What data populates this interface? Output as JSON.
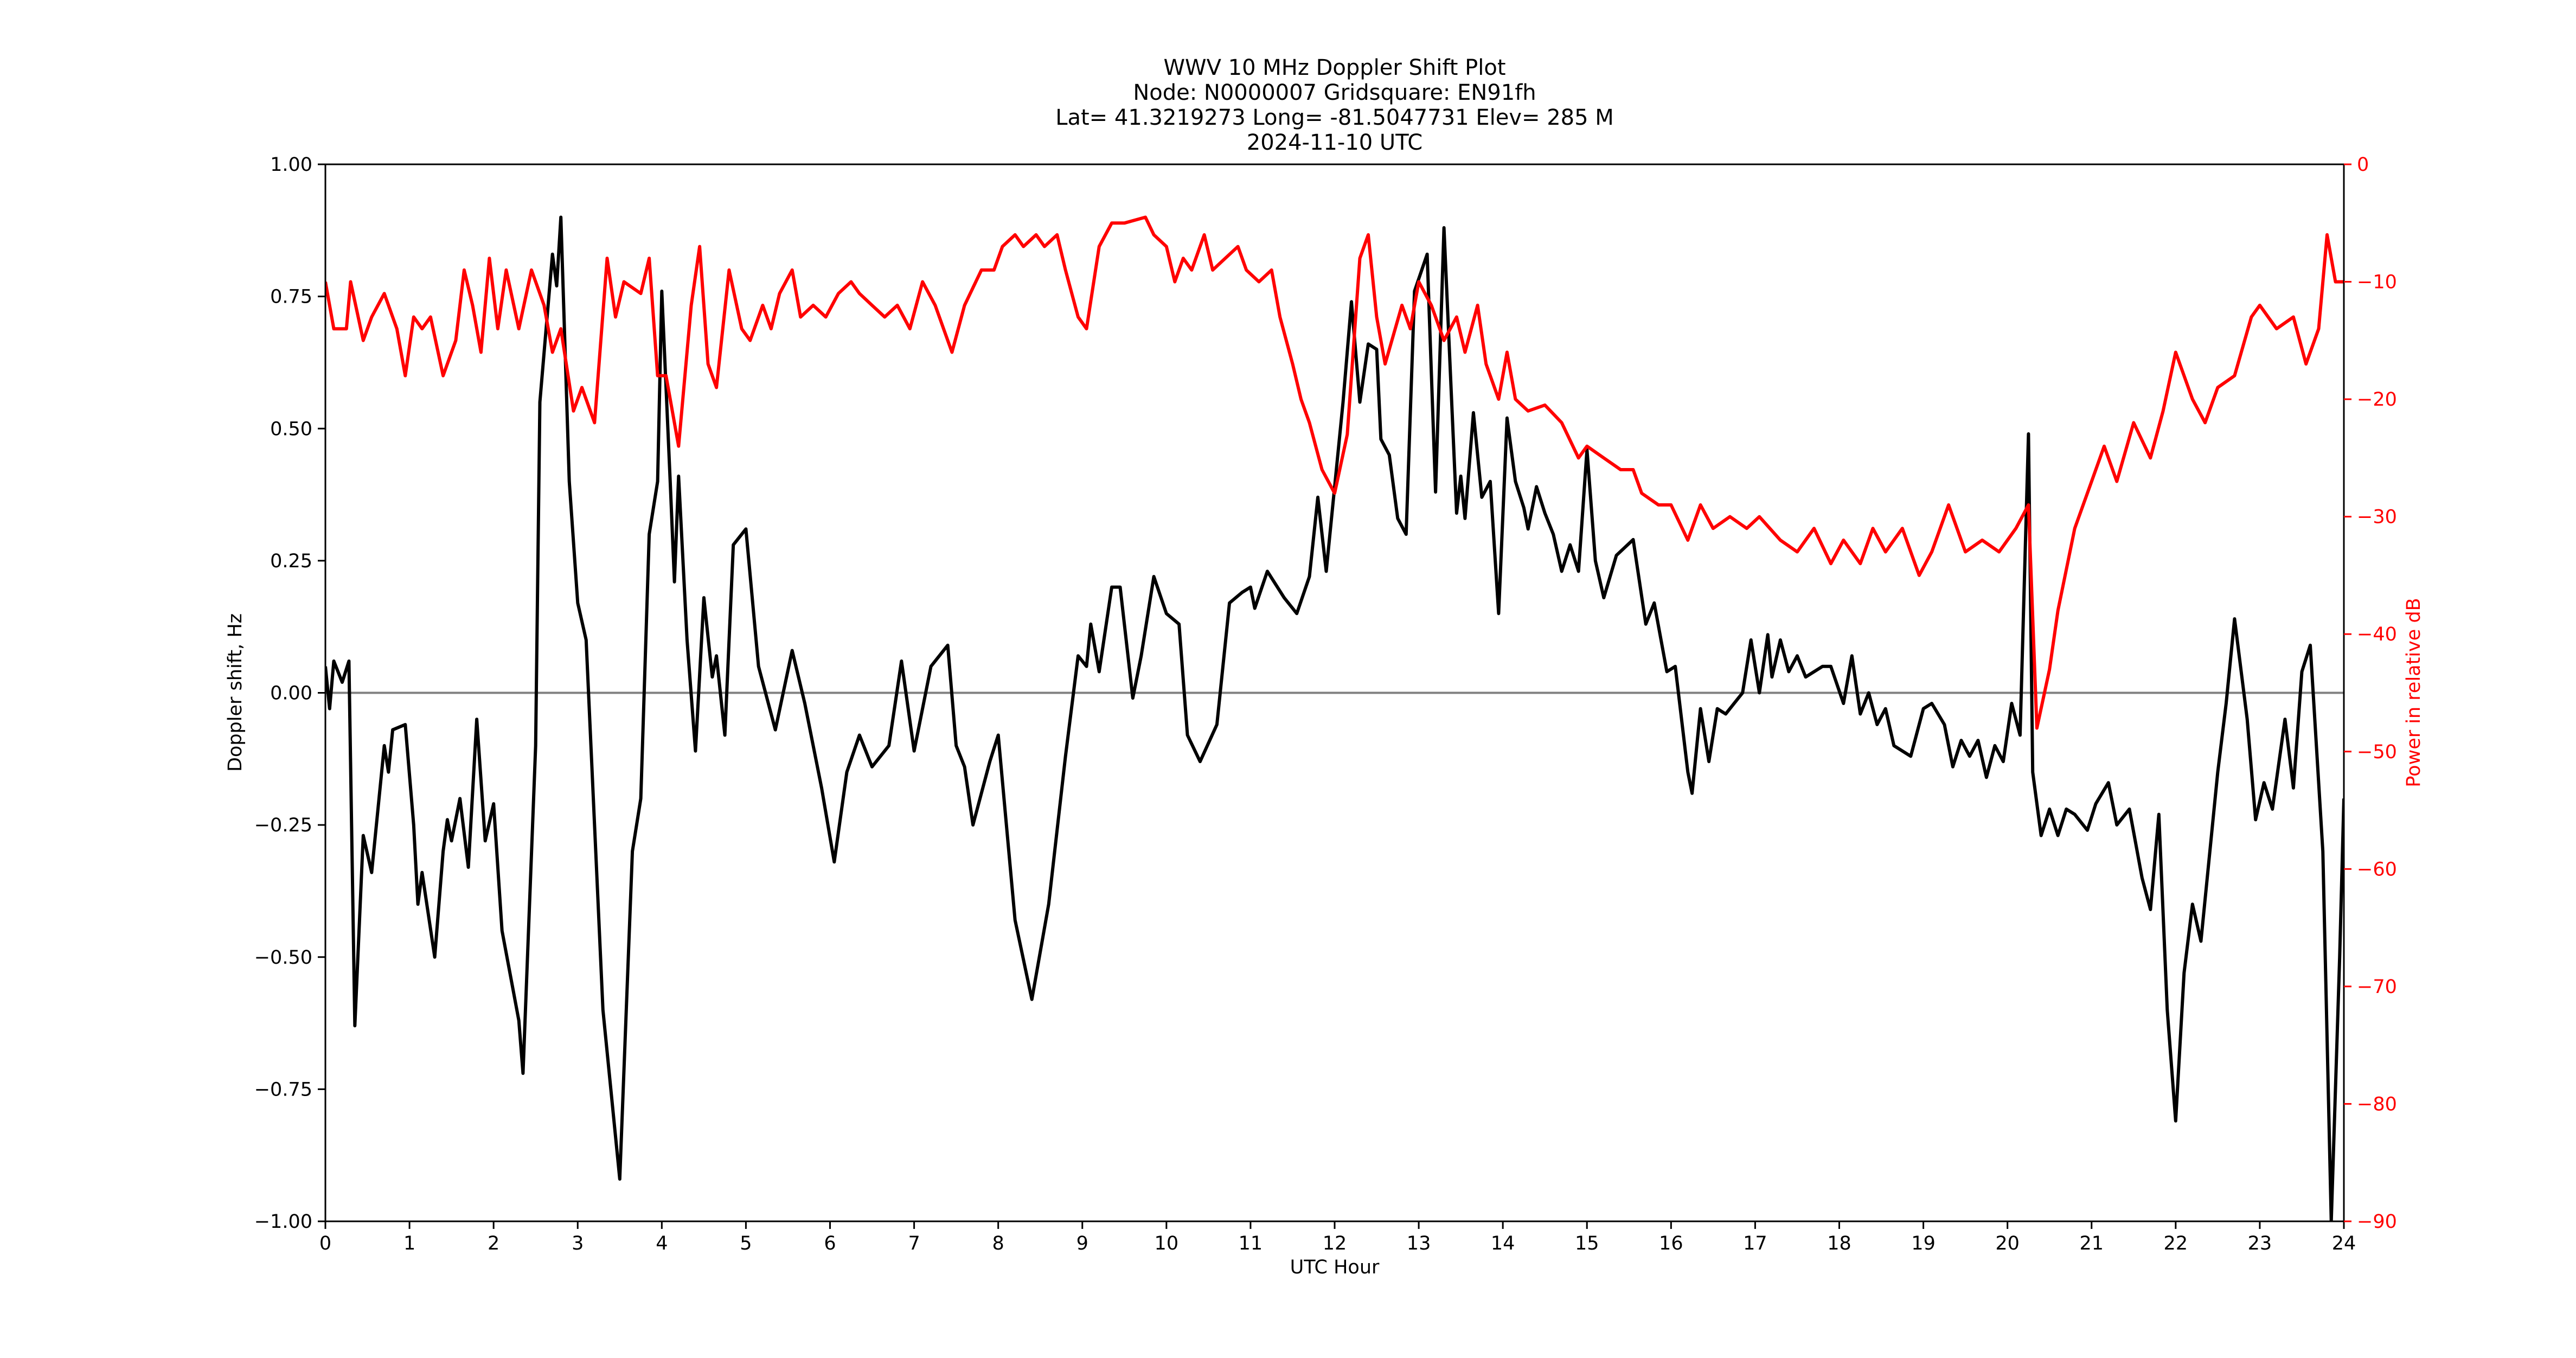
{
  "chart_data": {
    "type": "line",
    "title_lines": [
      "WWV 10 MHz Doppler Shift Plot",
      "Node:  N0000007     Gridsquare:  EN91fh",
      "Lat= 41.3219273    Long= -81.5047731    Elev= 285 M",
      "2024-11-10  UTC"
    ],
    "xlabel": "UTC Hour",
    "ylabel": "Doppler shift, Hz",
    "y2label": "Power in relative dB",
    "xlim": [
      0,
      24
    ],
    "ylim": [
      -1.0,
      1.0
    ],
    "y2lim": [
      -90,
      0
    ],
    "xticks": [
      0,
      1,
      2,
      3,
      4,
      5,
      6,
      7,
      8,
      9,
      10,
      11,
      12,
      13,
      14,
      15,
      16,
      17,
      18,
      19,
      20,
      21,
      22,
      23,
      24
    ],
    "yticks": [
      "-1.00",
      "-0.75",
      "-0.50",
      "-0.25",
      "0.00",
      "0.25",
      "0.50",
      "0.75",
      "1.00"
    ],
    "y2ticks": [
      -90,
      -80,
      -70,
      -60,
      -50,
      -40,
      -30,
      -20,
      -10,
      0
    ],
    "grid": false,
    "colors": {
      "doppler": "#000000",
      "power": "#ff0000",
      "zero_line": "#808080"
    },
    "series": [
      {
        "name": "Doppler shift",
        "axis": "left",
        "x": [
          0,
          0.05,
          0.1,
          0.2,
          0.28,
          0.35,
          0.45,
          0.55,
          0.7,
          0.75,
          0.8,
          0.95,
          1.05,
          1.1,
          1.15,
          1.3,
          1.4,
          1.45,
          1.5,
          1.6,
          1.7,
          1.8,
          1.9,
          2.0,
          2.1,
          2.3,
          2.35,
          2.5,
          2.55,
          2.7,
          2.75,
          2.8,
          2.9,
          3.0,
          3.1,
          3.3,
          3.5,
          3.65,
          3.75,
          3.85,
          3.95,
          4.0,
          4.1,
          4.15,
          4.2,
          4.3,
          4.4,
          4.5,
          4.6,
          4.65,
          4.75,
          4.85,
          5.0,
          5.15,
          5.35,
          5.55,
          5.7,
          5.9,
          6.05,
          6.2,
          6.35,
          6.5,
          6.7,
          6.85,
          7.0,
          7.2,
          7.4,
          7.5,
          7.6,
          7.7,
          7.9,
          8.0,
          8.2,
          8.4,
          8.6,
          8.8,
          8.95,
          9.05,
          9.1,
          9.2,
          9.35,
          9.45,
          9.6,
          9.7,
          9.85,
          10.0,
          10.15,
          10.25,
          10.4,
          10.6,
          10.75,
          10.9,
          11.0,
          11.05,
          11.2,
          11.4,
          11.55,
          11.7,
          11.8,
          11.9,
          12.1,
          12.2,
          12.3,
          12.4,
          12.5,
          12.55,
          12.65,
          12.75,
          12.85,
          12.95,
          13.1,
          13.2,
          13.3,
          13.45,
          13.5,
          13.55,
          13.65,
          13.75,
          13.85,
          13.95,
          14.05,
          14.15,
          14.25,
          14.3,
          14.4,
          14.5,
          14.6,
          14.7,
          14.8,
          14.9,
          15.0,
          15.1,
          15.2,
          15.35,
          15.55,
          15.7,
          15.8,
          15.95,
          16.05,
          16.2,
          16.25,
          16.35,
          16.45,
          16.55,
          16.65,
          16.75,
          16.85,
          16.95,
          17.05,
          17.15,
          17.2,
          17.3,
          17.4,
          17.5,
          17.6,
          17.8,
          17.9,
          18.05,
          18.15,
          18.25,
          18.35,
          18.45,
          18.55,
          18.65,
          18.85,
          19.0,
          19.1,
          19.25,
          19.35,
          19.45,
          19.55,
          19.65,
          19.75,
          19.85,
          19.95,
          20.05,
          20.15,
          20.25,
          20.3,
          20.4,
          20.5,
          20.6,
          20.7,
          20.8,
          20.95,
          21.05,
          21.2,
          21.3,
          21.45,
          21.6,
          21.7,
          21.8,
          21.9,
          22.0,
          22.1,
          22.2,
          22.3,
          22.5,
          22.6,
          22.7,
          22.85,
          22.95,
          23.05,
          23.15,
          23.3,
          23.4,
          23.5,
          23.6,
          23.75,
          23.85,
          23.95,
          24.0
        ],
        "values": [
          0.05,
          -0.03,
          0.06,
          0.02,
          0.06,
          -0.63,
          -0.27,
          -0.34,
          -0.1,
          -0.15,
          -0.07,
          -0.06,
          -0.25,
          -0.4,
          -0.34,
          -0.5,
          -0.3,
          -0.24,
          -0.28,
          -0.2,
          -0.33,
          -0.05,
          -0.28,
          -0.21,
          -0.45,
          -0.62,
          -0.72,
          -0.1,
          0.55,
          0.83,
          0.77,
          0.9,
          0.4,
          0.17,
          0.1,
          -0.6,
          -0.92,
          -0.3,
          -0.2,
          0.3,
          0.4,
          0.76,
          0.4,
          0.21,
          0.41,
          0.1,
          -0.11,
          0.18,
          0.03,
          0.07,
          -0.08,
          0.28,
          0.31,
          0.05,
          -0.07,
          0.08,
          -0.02,
          -0.18,
          -0.32,
          -0.15,
          -0.08,
          -0.14,
          -0.1,
          0.06,
          -0.11,
          0.05,
          0.09,
          -0.1,
          -0.14,
          -0.25,
          -0.13,
          -0.08,
          -0.43,
          -0.58,
          -0.4,
          -0.12,
          0.07,
          0.05,
          0.13,
          0.04,
          0.2,
          0.2,
          -0.01,
          0.07,
          0.22,
          0.15,
          0.13,
          -0.08,
          -0.13,
          -0.06,
          0.17,
          0.19,
          0.2,
          0.16,
          0.23,
          0.18,
          0.15,
          0.22,
          0.37,
          0.23,
          0.55,
          0.74,
          0.55,
          0.66,
          0.65,
          0.48,
          0.45,
          0.33,
          0.3,
          0.76,
          0.83,
          0.38,
          0.88,
          0.34,
          0.41,
          0.33,
          0.53,
          0.37,
          0.4,
          0.15,
          0.52,
          0.4,
          0.35,
          0.31,
          0.39,
          0.34,
          0.3,
          0.23,
          0.28,
          0.23,
          0.46,
          0.25,
          0.18,
          0.26,
          0.29,
          0.13,
          0.17,
          0.04,
          0.05,
          -0.15,
          -0.19,
          -0.03,
          -0.13,
          -0.03,
          -0.04,
          -0.02,
          0.0,
          0.1,
          0.0,
          0.11,
          0.03,
          0.1,
          0.04,
          0.07,
          0.03,
          0.05,
          0.05,
          -0.02,
          0.07,
          -0.04,
          0.0,
          -0.06,
          -0.03,
          -0.1,
          -0.12,
          -0.03,
          -0.02,
          -0.06,
          -0.14,
          -0.09,
          -0.12,
          -0.09,
          -0.16,
          -0.1,
          -0.13,
          -0.02,
          -0.08,
          0.49,
          -0.15,
          -0.27,
          -0.22,
          -0.27,
          -0.22,
          -0.23,
          -0.26,
          -0.21,
          -0.17,
          -0.25,
          -0.22,
          -0.35,
          -0.41,
          -0.23,
          -0.6,
          -0.81,
          -0.53,
          -0.4,
          -0.47,
          -0.15,
          -0.02,
          0.14,
          -0.05,
          -0.24,
          -0.17,
          -0.22,
          -0.05,
          -0.18,
          0.04,
          0.09,
          -0.3,
          -1.0,
          -0.5,
          -0.2
        ]
      },
      {
        "name": "Power",
        "axis": "right",
        "x": [
          0,
          0.1,
          0.25,
          0.3,
          0.45,
          0.55,
          0.7,
          0.85,
          0.95,
          1.05,
          1.15,
          1.25,
          1.4,
          1.55,
          1.65,
          1.75,
          1.85,
          1.95,
          2.05,
          2.15,
          2.3,
          2.45,
          2.6,
          2.7,
          2.8,
          2.95,
          3.05,
          3.2,
          3.35,
          3.45,
          3.55,
          3.75,
          3.85,
          3.95,
          4.05,
          4.2,
          4.35,
          4.45,
          4.55,
          4.65,
          4.8,
          4.95,
          5.05,
          5.2,
          5.3,
          5.4,
          5.55,
          5.65,
          5.8,
          5.95,
          6.1,
          6.25,
          6.35,
          6.5,
          6.65,
          6.8,
          6.95,
          7.1,
          7.25,
          7.35,
          7.45,
          7.6,
          7.8,
          7.95,
          8.05,
          8.2,
          8.3,
          8.45,
          8.55,
          8.7,
          8.8,
          8.95,
          9.05,
          9.2,
          9.35,
          9.5,
          9.75,
          9.85,
          10.0,
          10.1,
          10.2,
          10.3,
          10.45,
          10.55,
          10.7,
          10.85,
          10.95,
          11.1,
          11.25,
          11.35,
          11.5,
          11.6,
          11.7,
          11.85,
          12.0,
          12.15,
          12.3,
          12.4,
          12.5,
          12.6,
          12.8,
          12.9,
          13.0,
          13.15,
          13.3,
          13.45,
          13.55,
          13.7,
          13.8,
          13.95,
          14.05,
          14.15,
          14.3,
          14.5,
          14.7,
          14.9,
          15.0,
          15.2,
          15.4,
          15.55,
          15.65,
          15.85,
          16.0,
          16.2,
          16.35,
          16.5,
          16.7,
          16.9,
          17.05,
          17.3,
          17.5,
          17.7,
          17.9,
          18.05,
          18.25,
          18.4,
          18.55,
          18.75,
          18.95,
          19.1,
          19.3,
          19.5,
          19.7,
          19.9,
          20.1,
          20.25,
          20.35,
          20.5,
          20.6,
          20.8,
          21.0,
          21.15,
          21.3,
          21.5,
          21.7,
          21.85,
          22.0,
          22.2,
          22.35,
          22.5,
          22.7,
          22.9,
          23.0,
          23.2,
          23.4,
          23.55,
          23.7,
          23.8,
          23.9,
          24.0
        ],
        "values": [
          -10,
          -14,
          -14,
          -10,
          -15,
          -13,
          -11,
          -14,
          -18,
          -13,
          -14,
          -13,
          -18,
          -15,
          -9,
          -12,
          -16,
          -8,
          -14,
          -9,
          -14,
          -9,
          -12,
          -16,
          -14,
          -21,
          -19,
          -22,
          -8,
          -13,
          -10,
          -11,
          -8,
          -18,
          -18,
          -24,
          -12,
          -7,
          -17,
          -19,
          -9,
          -14,
          -15,
          -12,
          -14,
          -11,
          -9,
          -13,
          -12,
          -13,
          -11,
          -10,
          -11,
          -12,
          -13,
          -12,
          -14,
          -10,
          -12,
          -14,
          -16,
          -12,
          -9,
          -9,
          -7,
          -6,
          -7,
          -6,
          -7,
          -6,
          -9,
          -13,
          -14,
          -7,
          -5,
          -5,
          -4.5,
          -6,
          -7,
          -10,
          -8,
          -9,
          -6,
          -9,
          -8,
          -7,
          -9,
          -10,
          -9,
          -13,
          -17,
          -20,
          -22,
          -26,
          -28,
          -23,
          -8,
          -6,
          -13,
          -17,
          -12,
          -14,
          -10,
          -12,
          -15,
          -13,
          -16,
          -12,
          -17,
          -20,
          -16,
          -20,
          -21,
          -20.5,
          -22,
          -25,
          -24,
          -25,
          -26,
          -26,
          -28,
          -29,
          -29,
          -32,
          -29,
          -31,
          -30,
          -31,
          -30,
          -32,
          -33,
          -31,
          -34,
          -32,
          -34,
          -31,
          -33,
          -31,
          -35,
          -33,
          -29,
          -33,
          -32,
          -33,
          -31,
          -29,
          -48,
          -43,
          -38,
          -31,
          -27,
          -24,
          -27,
          -22,
          -25,
          -21,
          -16,
          -20,
          -22,
          -19,
          -18,
          -13,
          -12,
          -14,
          -13,
          -17,
          -14,
          -6,
          -10,
          -10
        ]
      }
    ]
  }
}
